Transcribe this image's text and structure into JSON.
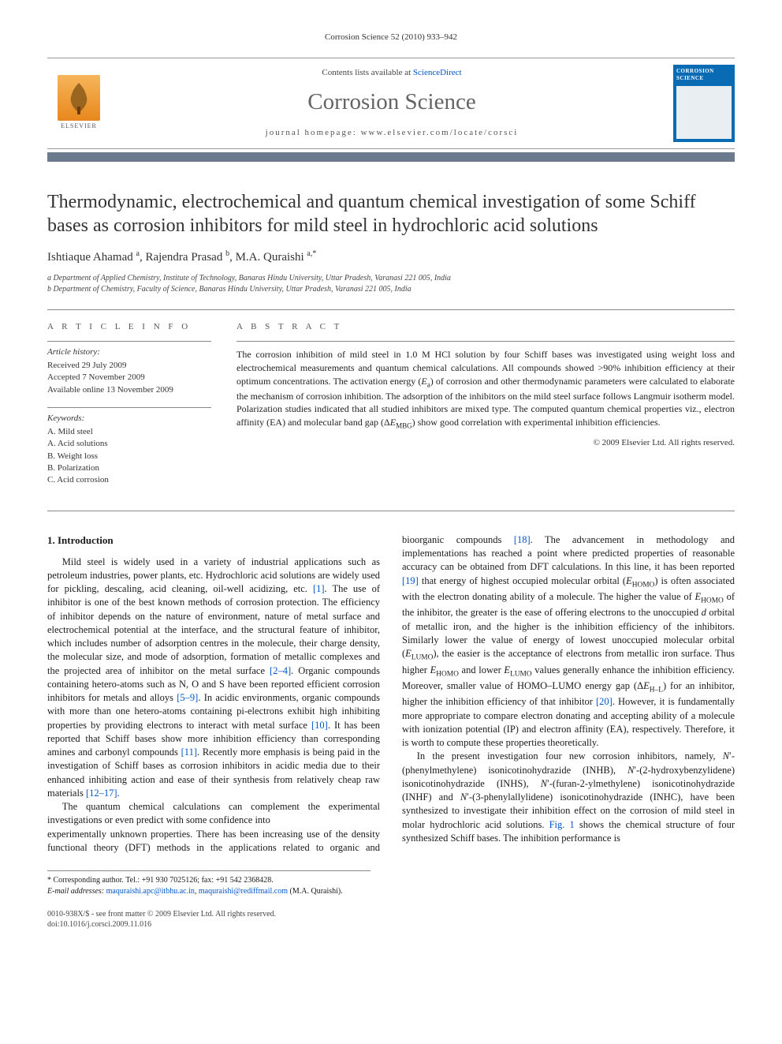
{
  "running_header": "Corrosion Science 52 (2010) 933–942",
  "banner": {
    "publisher_label": "ELSEVIER",
    "contents_prefix": "Contents lists available at ",
    "contents_link": "ScienceDirect",
    "journal": "Corrosion Science",
    "homepage_prefix": "journal homepage: ",
    "homepage": "www.elsevier.com/locate/corsci",
    "cover_label": "CORROSION SCIENCE"
  },
  "title": "Thermodynamic, electrochemical and quantum chemical investigation of some Schiff bases as corrosion inhibitors for mild steel in hydrochloric acid solutions",
  "authors_html": "Ishtiaque Ahamad <sup>a</sup>, Rajendra Prasad <sup>b</sup>, M.A. Quraishi <sup>a,*</sup>",
  "affiliations": [
    "a Department of Applied Chemistry, Institute of Technology, Banaras Hindu University, Uttar Pradesh, Varanasi 221 005, India",
    "b Department of Chemistry, Faculty of Science, Banaras Hindu University, Uttar Pradesh, Varanasi 221 005, India"
  ],
  "article_info": {
    "head": "A R T I C L E   I N F O",
    "history_label": "Article history:",
    "history": [
      "Received 29 July 2009",
      "Accepted 7 November 2009",
      "Available online 13 November 2009"
    ],
    "keywords_label": "Keywords:",
    "keywords": [
      "A. Mild steel",
      "A. Acid solutions",
      "B. Weight loss",
      "B. Polarization",
      "C. Acid corrosion"
    ]
  },
  "abstract": {
    "head": "A B S T R A C T",
    "text": "The corrosion inhibition of mild steel in 1.0 M HCl solution by four Schiff bases was investigated using weight loss and electrochemical measurements and quantum chemical calculations. All compounds showed >90% inhibition efficiency at their optimum concentrations. The activation energy (Ea) of corrosion and other thermodynamic parameters were calculated to elaborate the mechanism of corrosion inhibition. The adsorption of the inhibitors on the mild steel surface follows Langmuir isotherm model. Polarization studies indicated that all studied inhibitors are mixed type. The computed quantum chemical properties viz., electron affinity (EA) and molecular band gap (ΔEMBG) show good correlation with experimental inhibition efficiencies.",
    "copyright": "© 2009 Elsevier Ltd. All rights reserved."
  },
  "section1": {
    "heading": "1. Introduction",
    "p1": "Mild steel is widely used in a variety of industrial applications such as petroleum industries, power plants, etc. Hydrochloric acid solutions are widely used for pickling, descaling, acid cleaning, oil-well acidizing, etc. [1]. The use of inhibitor is one of the best known methods of corrosion protection. The efficiency of inhibitor depends on the nature of environment, nature of metal surface and electrochemical potential at the interface, and the structural feature of inhibitor, which includes number of adsorption centres in the molecule, their charge density, the molecular size, and mode of adsorption, formation of metallic complexes and the projected area of inhibitor on the metal surface [2–4]. Organic compounds containing hetero-atoms such as N, O and S have been reported efficient corrosion inhibitors for metals and alloys [5–9]. In acidic environments, organic compounds with more than one hetero-atoms containing pi-electrons exhibit high inhibiting properties by providing electrons to interact with metal surface [10]. It has been reported that Schiff bases show more inhibition efficiency than corresponding amines and carbonyl compounds [11]. Recently more emphasis is being paid in the investigation of Schiff bases as corrosion inhibitors in acidic media due to their enhanced inhibiting action and ease of their synthesis from relatively cheap raw materials [12–17].",
    "p2": "The quantum chemical calculations can complement the experimental investigations or even predict with some confidence into",
    "p3": "experimentally unknown properties. There has been increasing use of the density functional theory (DFT) methods in the applications related to organic and bioorganic compounds [18]. The advancement in methodology and implementations has reached a point where predicted properties of reasonable accuracy can be obtained from DFT calculations. In this line, it has been reported [19] that energy of highest occupied molecular orbital (EHOMO) is often associated with the electron donating ability of a molecule. The higher the value of EHOMO of the inhibitor, the greater is the ease of offering electrons to the unoccupied d orbital of metallic iron, and the higher is the inhibition efficiency of the inhibitors. Similarly lower the value of energy of lowest unoccupied molecular orbital (ELUMO), the easier is the acceptance of electrons from metallic iron surface. Thus higher EHOMO and lower ELUMO values generally enhance the inhibition efficiency. Moreover, smaller value of HOMO–LUMO energy gap (ΔEH–L) for an inhibitor, higher the inhibition efficiency of that inhibitor [20]. However, it is fundamentally more appropriate to compare electron donating and accepting ability of a molecule with ionization potential (IP) and electron affinity (EA), respectively. Therefore, it is worth to compute these properties theoretically.",
    "p4": "In the present investigation four new corrosion inhibitors, namely, N′-(phenylmethylene) isonicotinohydrazide (INHB), N′-(2-hydroxybenzylidene) isonicotinohydrazide (INHS), N′-(furan-2-ylmethylene) isonicotinohydrazide (INHF) and N′-(3-phenylallylidene) isonicotinohydrazide (INHC), have been synthesized to investigate their inhibition effect on the corrosion of mild steel in molar hydrochloric acid solutions. Fig. 1 shows the chemical structure of four synthesized Schiff bases. The inhibition performance is"
  },
  "footnote": {
    "corr": "* Corresponding author. Tel.: +91 930 7025126; fax: +91 542 2368428.",
    "email_label": "E-mail addresses: ",
    "email1": "maquraishi.apc@itbhu.ac.in",
    "email2": "maquraishi@rediffmail.com",
    "email_tail": " (M.A. Quraishi)."
  },
  "bottom": {
    "line1": "0010-938X/$ - see front matter © 2009 Elsevier Ltd. All rights reserved.",
    "line2": "doi:10.1016/j.corsci.2009.11.016"
  },
  "colors": {
    "link": "#0056c7",
    "bar": "#6b7a8c",
    "journal_gray": "#646464",
    "cover_blue": "#0a6bb5"
  }
}
